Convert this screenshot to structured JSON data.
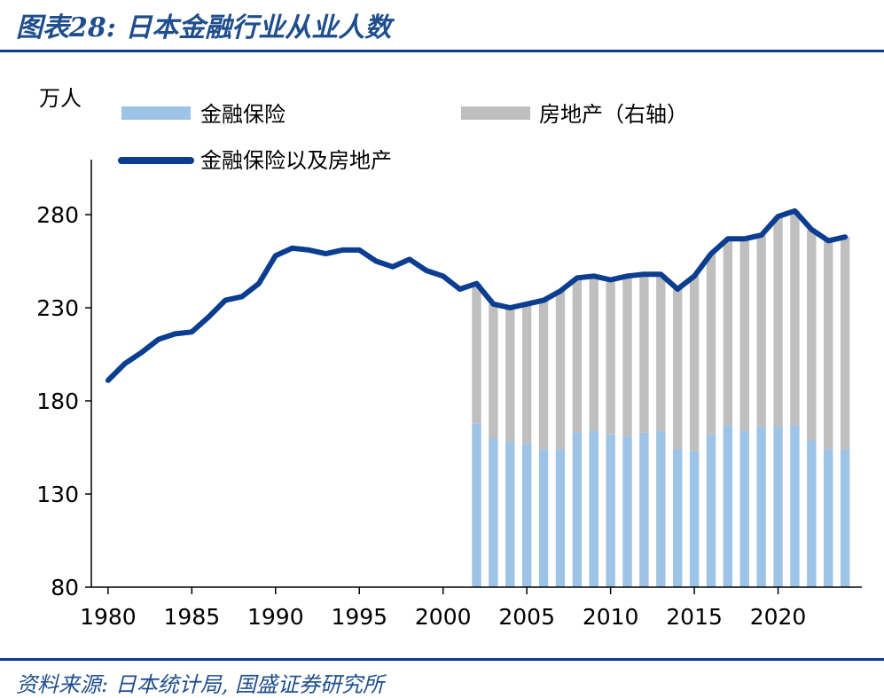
{
  "figure": {
    "title": "图表28: 日本金融行业从业人数",
    "source": "资料来源: 日本统计局, 国盛证券研究所"
  },
  "chart_data": {
    "type": "bar",
    "y_unit": "万人",
    "ylim": [
      80,
      300
    ],
    "yticks": [
      80,
      130,
      180,
      230,
      280
    ],
    "xlim": [
      1979,
      2025
    ],
    "xticks": [
      1980,
      1985,
      1990,
      1995,
      2000,
      2005,
      2010,
      2015,
      2020
    ],
    "legend": {
      "placement": "top-left",
      "entries": [
        "金融保险",
        "房地产（右轴）",
        "金融保险以及房地产"
      ]
    },
    "colors": {
      "finance": "#9dc3e6",
      "real_estate": "#bfbfbf",
      "total": "#0b3d91"
    },
    "series": [
      {
        "name": "金融保险",
        "kind": "bar",
        "x": [
          2002,
          2003,
          2004,
          2005,
          2006,
          2007,
          2008,
          2009,
          2010,
          2011,
          2012,
          2013,
          2014,
          2015,
          2016,
          2017,
          2018,
          2019,
          2020,
          2021,
          2022,
          2023,
          2024
        ],
        "values": [
          168,
          160,
          158,
          157,
          154,
          154,
          163,
          164,
          162,
          161,
          163,
          164,
          154,
          153,
          162,
          167,
          164,
          166,
          166,
          167,
          159,
          154,
          154
        ]
      },
      {
        "name": "房地产（右轴）",
        "kind": "stacked-bar",
        "x": [
          2002,
          2003,
          2004,
          2005,
          2006,
          2007,
          2008,
          2009,
          2010,
          2011,
          2012,
          2013,
          2014,
          2015,
          2016,
          2017,
          2018,
          2019,
          2020,
          2021,
          2022,
          2023,
          2024
        ],
        "values": [
          73,
          72,
          72,
          75,
          79,
          84,
          83,
          84,
          84,
          86,
          85,
          84,
          86,
          94,
          97,
          99,
          102,
          103,
          113,
          115,
          112,
          113,
          114
        ]
      },
      {
        "name": "金融保险以及房地产",
        "kind": "line",
        "x": [
          1980,
          1981,
          1982,
          1983,
          1984,
          1985,
          1986,
          1987,
          1988,
          1989,
          1990,
          1991,
          1992,
          1993,
          1994,
          1995,
          1996,
          1997,
          1998,
          1999,
          2000,
          2001,
          2002,
          2003,
          2004,
          2005,
          2006,
          2007,
          2008,
          2009,
          2010,
          2011,
          2012,
          2013,
          2014,
          2015,
          2016,
          2017,
          2018,
          2019,
          2020,
          2021,
          2022,
          2023,
          2024
        ],
        "values": [
          191,
          200,
          206,
          213,
          216,
          217,
          225,
          234,
          236,
          243,
          258,
          262,
          261,
          259,
          261,
          261,
          255,
          252,
          256,
          250,
          247,
          240,
          243,
          232,
          230,
          232,
          234,
          239,
          246,
          247,
          245,
          247,
          248,
          248,
          240,
          247,
          259,
          267,
          267,
          269,
          279,
          282,
          272,
          266,
          268
        ]
      }
    ]
  }
}
